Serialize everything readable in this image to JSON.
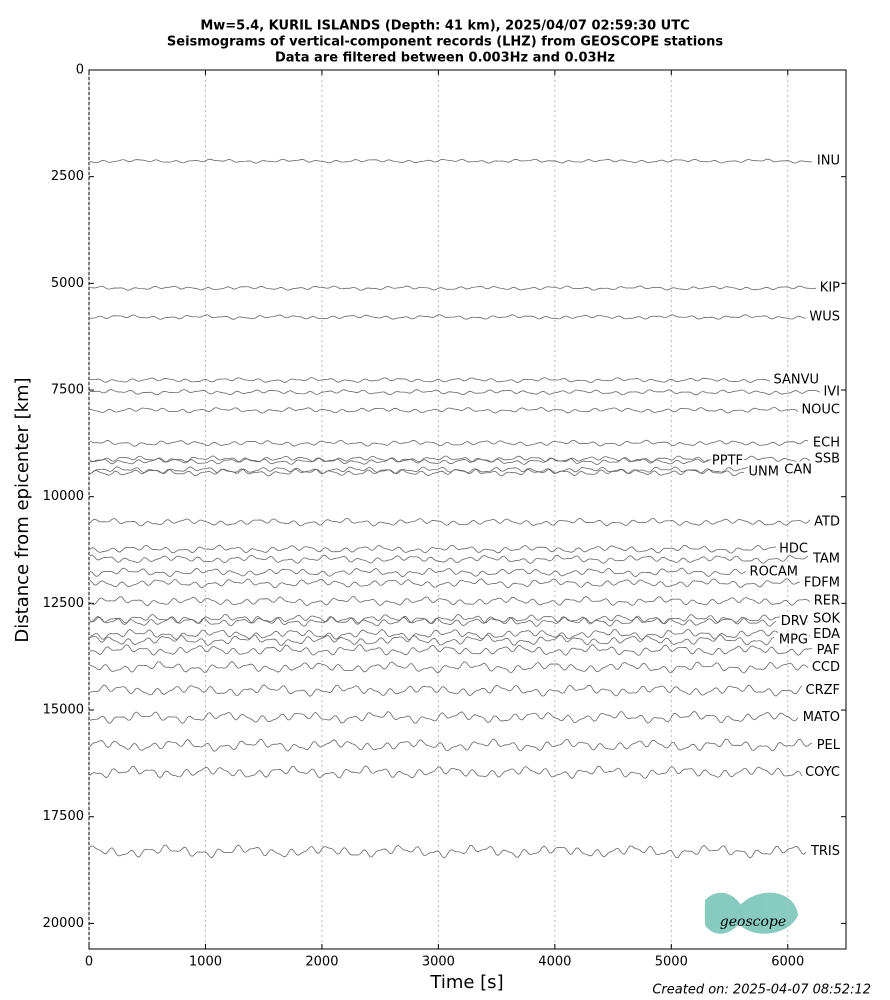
{
  "chart_data": {
    "type": "seismogram",
    "title": "Mw=5.4, KURIL ISLANDS (Depth: 41 km), 2025/04/07 02:59:30 UTC",
    "subtitle": "Seismograms of vertical-component records (LHZ) from GEOSCOPE stations",
    "subtitle2": "Data are filtered between 0.003Hz and 0.03Hz",
    "x_label": "Time [s]",
    "y_label": "Distance from epicenter [km]",
    "footer": "Created on: 2025-04-07 08:52:12",
    "logo_text": "geoscope",
    "categories": [
      "INU",
      "KIP",
      "WUS",
      "SANVU",
      "IVI",
      "NOUC",
      "ECH",
      "SSB",
      "PPTF",
      "CAN",
      "UNM",
      "ATD",
      "HDC",
      "TAM",
      "ROCAM",
      "FDFM",
      "RER",
      "SOK",
      "DRV",
      "EDA",
      "MPG",
      "PAF",
      "CCD",
      "CRZF",
      "MATO",
      "PEL",
      "COYC",
      "TRIS"
    ],
    "values": [
      2134,
      5111,
      5791,
      7268,
      7550,
      7972,
      8746,
      9121,
      9168,
      9379,
      9426,
      10598,
      11231,
      11465,
      11770,
      12028,
      12450,
      12872,
      12919,
      13224,
      13364,
      13599,
      13998,
      14537,
      15170,
      15826,
      16460,
      18312
    ],
    "color": "#666666",
    "xlim": [
      0,
      6500
    ],
    "xticks": [
      0,
      1000,
      2000,
      3000,
      4000,
      5000,
      6000
    ],
    "ylim": [
      0,
      20600
    ],
    "yticks": [
      0,
      2500,
      5000,
      7500,
      10000,
      12500,
      15000,
      17500,
      20000
    ],
    "y_inverted": true,
    "grid": true
  }
}
